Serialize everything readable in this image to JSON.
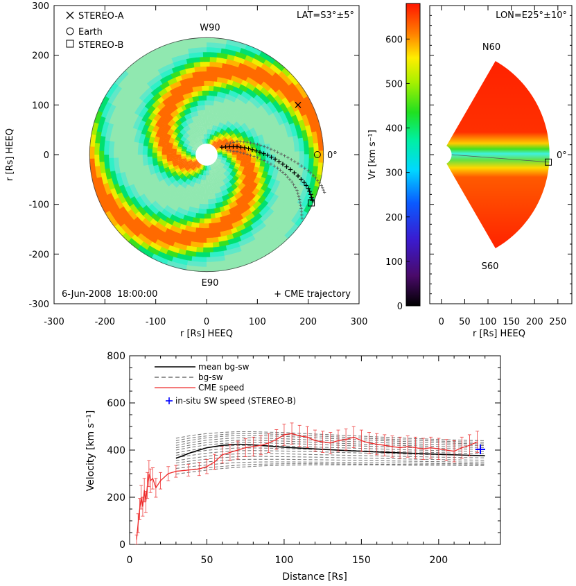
{
  "chart_data": [
    {
      "type": "heatmap",
      "panel": "equatorial-velocity-map",
      "title": "",
      "xlabel": "r [Rs] HEEQ",
      "ylabel": "r [Rs] HEEQ",
      "xlim": [
        -300,
        300
      ],
      "ylim": [
        -300,
        300
      ],
      "xticks": [
        "-300",
        "-200",
        "-100",
        "0",
        "100",
        "200",
        "300"
      ],
      "yticks": [
        "300",
        "200",
        "100",
        "0",
        "-100",
        "-200",
        "-300"
      ],
      "grid": false,
      "legend_position": "top-left",
      "legend": [
        "STEREO-A",
        "Earth",
        "STEREO-B"
      ],
      "lat_label": "LAT=S3°±5°",
      "date_label": "6-Jun-2008  18:00:00",
      "trajectory_label": "+ CME trajectory",
      "angle_labels": {
        "top": "W90",
        "bottom": "E90",
        "right": "0°"
      },
      "outer_radius": 230,
      "inner_radius": 21.5,
      "spacecraft": {
        "stereo_a": {
          "x": 180,
          "y": 100
        },
        "earth": {
          "x": 218,
          "y": 0
        },
        "stereo_b": {
          "x": 206,
          "y": -97
        }
      },
      "cme_trajectory": [
        [
          30,
          15
        ],
        [
          45,
          16
        ],
        [
          60,
          16
        ],
        [
          75,
          14
        ],
        [
          90,
          10
        ],
        [
          105,
          5
        ],
        [
          120,
          -1
        ],
        [
          135,
          -9
        ],
        [
          150,
          -19
        ],
        [
          165,
          -30
        ],
        [
          180,
          -43
        ],
        [
          192,
          -56
        ],
        [
          200,
          -68
        ],
        [
          205,
          -80
        ],
        [
          208,
          -92
        ]
      ],
      "cme_trajectory_upper": [
        [
          40,
          22
        ],
        [
          60,
          26
        ],
        [
          80,
          25
        ],
        [
          100,
          21
        ],
        [
          120,
          14
        ],
        [
          140,
          5
        ],
        [
          160,
          -6
        ],
        [
          180,
          -18
        ],
        [
          200,
          -32
        ],
        [
          215,
          -47
        ],
        [
          226,
          -62
        ],
        [
          232,
          -76
        ]
      ],
      "cme_trajectory_lower": [
        [
          40,
          8
        ],
        [
          60,
          6
        ],
        [
          80,
          1
        ],
        [
          100,
          -6
        ],
        [
          120,
          -15
        ],
        [
          140,
          -27
        ],
        [
          155,
          -40
        ],
        [
          168,
          -55
        ],
        [
          178,
          -72
        ],
        [
          183,
          -90
        ],
        [
          186,
          -108
        ],
        [
          188,
          -128
        ]
      ]
    },
    {
      "type": "heatmap",
      "panel": "meridional-velocity-map",
      "lon_label": "LON=E25°±10°",
      "xlabel": "r [Rs] HEEQ",
      "xlim": [
        -25,
        280
      ],
      "xticks": [
        "0",
        "50",
        "100",
        "150",
        "200",
        "250"
      ],
      "angle_labels": {
        "top": "N60",
        "bottom": "S60",
        "right": "0°"
      },
      "colorbar": {
        "label": "Vr [km s⁻¹]",
        "range": [
          0,
          680
        ],
        "ticks": [
          "0",
          "100",
          "200",
          "300",
          "400",
          "500",
          "600"
        ]
      },
      "stereo_b_marker": {
        "r": 230,
        "lat": -4
      }
    },
    {
      "type": "line",
      "panel": "cme-velocity-profile",
      "xlabel": "Distance [Rs]",
      "ylabel": "Velocity  [km s⁻¹]",
      "xlim": [
        0,
        240
      ],
      "ylim": [
        0,
        800
      ],
      "xticks": [
        "0",
        "50",
        "100",
        "150",
        "200"
      ],
      "yticks": [
        "0",
        "200",
        "400",
        "600",
        "800"
      ],
      "grid": false,
      "legend_position": "top-left",
      "legend": [
        "mean bg-sw",
        "bg-sw",
        "CME speed",
        "in-situ SW speed (STEREO-B)"
      ],
      "series": [
        {
          "name": "mean bg-sw",
          "x": [
            30,
            40,
            50,
            60,
            70,
            80,
            90,
            100,
            120,
            140,
            160,
            180,
            200,
            220,
            230
          ],
          "y": [
            365,
            390,
            410,
            420,
            425,
            422,
            417,
            412,
            405,
            398,
            392,
            387,
            382,
            378,
            376
          ]
        },
        {
          "name": "bg-sw",
          "x": [
            30,
            40,
            50,
            60,
            70,
            80,
            90,
            100,
            120,
            140,
            160,
            180,
            200,
            220,
            230
          ],
          "family": [
            [
              450,
              462,
              470,
              475,
              478,
              478,
              476,
              474,
              468,
              462,
              456,
              450,
              445,
              441,
              440
            ],
            [
              440,
              452,
              460,
              466,
              470,
              470,
              468,
              466,
              460,
              454,
              448,
              443,
              438,
              434,
              433
            ],
            [
              430,
              442,
              452,
              458,
              462,
              462,
              460,
              458,
              452,
              446,
              441,
              436,
              431,
              427,
              426
            ],
            [
              420,
              432,
              442,
              448,
              452,
              452,
              450,
              448,
              442,
              437,
              432,
              427,
              423,
              420,
              419
            ],
            [
              410,
              422,
              432,
              438,
              442,
              442,
              440,
              438,
              433,
              428,
              423,
              419,
              415,
              412,
              411
            ],
            [
              400,
              412,
              422,
              428,
              432,
              432,
              430,
              428,
              424,
              419,
              415,
              411,
              407,
              404,
              403
            ],
            [
              388,
              400,
              410,
              417,
              420,
              420,
              419,
              417,
              413,
              409,
              405,
              401,
              398,
              395,
              394
            ],
            [
              378,
              389,
              399,
              405,
              409,
              409,
              408,
              406,
              403,
              399,
              395,
              392,
              389,
              386,
              385
            ],
            [
              368,
              378,
              387,
              393,
              397,
              398,
              397,
              396,
              393,
              389,
              386,
              383,
              380,
              378,
              377
            ],
            [
              355,
              365,
              374,
              380,
              384,
              385,
              385,
              384,
              381,
              378,
              375,
              373,
              370,
              368,
              367
            ],
            [
              345,
              354,
              362,
              368,
              372,
              373,
              373,
              372,
              370,
              367,
              365,
              362,
              360,
              358,
              357
            ],
            [
              335,
              343,
              350,
              356,
              360,
              361,
              361,
              361,
              359,
              357,
              355,
              353,
              351,
              349,
              349
            ],
            [
              322,
              330,
              337,
              343,
              347,
              349,
              350,
              350,
              349,
              348,
              346,
              345,
              343,
              342,
              341
            ],
            [
              310,
              318,
              325,
              331,
              336,
              339,
              341,
              342,
              342,
              341,
              340,
              339,
              338,
              337,
              337
            ],
            [
              298,
              307,
              315,
              322,
              327,
              331,
              334,
              336,
              337,
              337,
              337,
              336,
              336,
              335,
              335
            ]
          ]
        },
        {
          "name": "CME speed",
          "x": [
            4.5,
            5.5,
            6.5,
            7.5,
            8.5,
            9.5,
            10.5,
            11.5,
            12.5,
            13.5,
            15,
            17,
            20,
            25,
            30,
            38,
            45,
            50,
            55,
            60,
            65,
            70,
            75,
            80,
            85,
            90,
            95,
            100,
            105,
            110,
            115,
            120,
            125,
            130,
            135,
            140,
            145,
            150,
            155,
            160,
            165,
            170,
            175,
            180,
            185,
            190,
            195,
            200,
            205,
            210,
            215,
            220,
            225
          ],
          "y": [
            20,
            90,
            150,
            200,
            160,
            230,
            180,
            250,
            300,
            270,
            280,
            240,
            270,
            300,
            310,
            315,
            320,
            330,
            350,
            380,
            390,
            400,
            410,
            415,
            420,
            430,
            445,
            465,
            470,
            460,
            455,
            440,
            435,
            430,
            440,
            445,
            455,
            440,
            430,
            425,
            420,
            415,
            410,
            415,
            410,
            405,
            410,
            405,
            400,
            395,
            410,
            420,
            435
          ],
          "error": [
            20,
            40,
            45,
            50,
            40,
            50,
            45,
            55,
            55,
            50,
            45,
            40,
            35,
            30,
            25,
            25,
            28,
            30,
            32,
            35,
            35,
            38,
            38,
            40,
            40,
            40,
            42,
            45,
            45,
            45,
            45,
            45,
            45,
            45,
            45,
            45,
            45,
            45,
            45,
            45,
            45,
            45,
            45,
            45,
            45,
            45,
            45,
            45,
            45,
            45,
            45,
            45,
            45
          ]
        },
        {
          "name": "in-situ SW speed (STEREO-B)",
          "x": [
            227
          ],
          "y": [
            403
          ]
        }
      ]
    }
  ]
}
